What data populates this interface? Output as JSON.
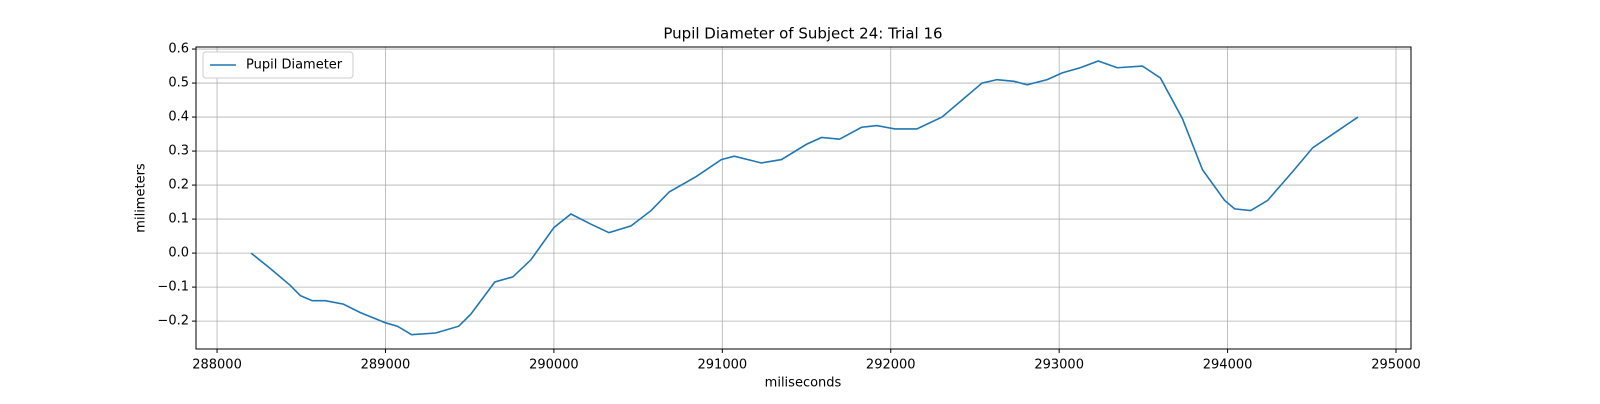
{
  "chart_data": {
    "type": "line",
    "title": "Pupil Diameter of Subject 24: Trial 16",
    "x_label": "miliseconds",
    "y_label": "milimeters",
    "x": [
      288202,
      288315,
      288435,
      288494,
      288565,
      288643,
      288750,
      288851,
      289000,
      289071,
      289155,
      289298,
      289435,
      289506,
      289649,
      289756,
      289863,
      290000,
      290101,
      290220,
      290327,
      290458,
      290577,
      290685,
      290845,
      290994,
      291071,
      291232,
      291351,
      291500,
      291589,
      291696,
      291827,
      291917,
      292024,
      292155,
      292304,
      292435,
      292542,
      292631,
      292732,
      292810,
      292929,
      293018,
      293125,
      293232,
      293345,
      293494,
      293601,
      293732,
      293851,
      293982,
      294042,
      294137,
      294238,
      294387,
      294506,
      294655,
      294774
    ],
    "series": [
      {
        "name": "Pupil Diameter",
        "color": "#1f77b4",
        "values": [
          0.0,
          -0.045,
          -0.095,
          -0.125,
          -0.14,
          -0.14,
          -0.15,
          -0.175,
          -0.205,
          -0.215,
          -0.24,
          -0.235,
          -0.215,
          -0.18,
          -0.085,
          -0.07,
          -0.02,
          0.075,
          0.115,
          0.085,
          0.06,
          0.08,
          0.125,
          0.18,
          0.225,
          0.275,
          0.285,
          0.265,
          0.275,
          0.32,
          0.34,
          0.335,
          0.37,
          0.375,
          0.365,
          0.365,
          0.4,
          0.455,
          0.5,
          0.51,
          0.505,
          0.495,
          0.51,
          0.53,
          0.545,
          0.565,
          0.545,
          0.55,
          0.515,
          0.395,
          0.245,
          0.155,
          0.13,
          0.125,
          0.155,
          0.24,
          0.31,
          0.36,
          0.4
        ]
      }
    ],
    "xlim": [
      287875,
      295089
    ],
    "xticks": [
      288000,
      289000,
      290000,
      291000,
      292000,
      293000,
      294000,
      295000
    ],
    "ylim": [
      -0.282,
      0.606
    ],
    "yticks": [
      {
        "value": -0.2,
        "label": "−0.2"
      },
      {
        "value": -0.1,
        "label": "−0.1"
      },
      {
        "value": 0,
        "label": "0.0"
      },
      0.1,
      0.2,
      0.3,
      0.4,
      0.5,
      0.6
    ],
    "grid": true,
    "legend": "upper left"
  }
}
